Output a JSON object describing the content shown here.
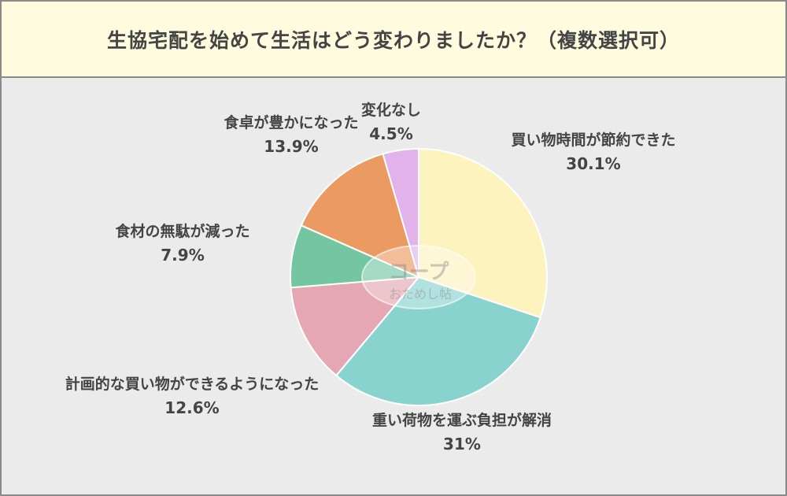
{
  "header": {
    "title": "生協宅配を始めて生活はどう変わりましたか？（複数選択可）"
  },
  "watermark": {
    "text_top": "コープ",
    "text_bottom": "おためし帖"
  },
  "colors": {
    "background": "#ebebeb",
    "header_bg": "#fefbdf",
    "border": "#8a8a8a",
    "text": "#444444"
  },
  "chart_data": {
    "type": "pie",
    "title": "生協宅配を始めて生活はどう変わりましたか？（複数選択可）",
    "start_angle_deg": 0,
    "direction": "clockwise",
    "slices": [
      {
        "label": "買い物時間が節約できた",
        "value": 30.1,
        "display": "30.1%",
        "color": "#fdf3bf"
      },
      {
        "label": "重い荷物を運ぶ負担が解消",
        "value": 31,
        "display": "31%",
        "color": "#89d3cf"
      },
      {
        "label": "計画的な買い物ができるようになった",
        "value": 12.6,
        "display": "12.6%",
        "color": "#e4a7b3"
      },
      {
        "label": "食材の無駄が減った",
        "value": 7.9,
        "display": "7.9%",
        "color": "#74c6a3"
      },
      {
        "label": "食卓が豊かになった",
        "value": 13.9,
        "display": "13.9%",
        "color": "#eb9a62"
      },
      {
        "label": "変化なし",
        "value": 4.5,
        "display": "4.5%",
        "color": "#e2b3eb"
      }
    ]
  }
}
